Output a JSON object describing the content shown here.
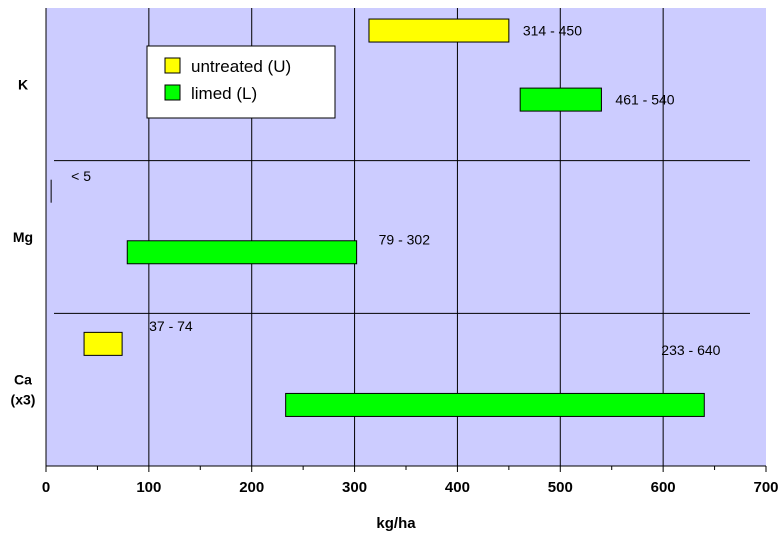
{
  "chart_data": {
    "type": "bar",
    "orientation": "horizontal",
    "xlabel": "kg/ha",
    "xlim": [
      0,
      700
    ],
    "xticks": [
      0,
      100,
      200,
      300,
      400,
      500,
      600,
      700
    ],
    "grid": true,
    "legend_position": "top-left",
    "categories": [
      {
        "label": "K",
        "label_lines": [
          "K"
        ]
      },
      {
        "label": "Mg",
        "label_lines": [
          "Mg"
        ]
      },
      {
        "label": "Ca (x3)",
        "label_lines": [
          "Ca",
          "(x3)"
        ]
      }
    ],
    "series": [
      {
        "name": "untreated (U)",
        "color": "#ffff00",
        "ranges": [
          {
            "category": "K",
            "low": 314,
            "high": 450,
            "label": "314 - 450"
          },
          {
            "category": "Mg",
            "low": 5,
            "high": 5,
            "label": "< 5"
          },
          {
            "category": "Ca (x3)",
            "low": 37,
            "high": 74,
            "label": "37 - 74"
          }
        ]
      },
      {
        "name": "limed (L)",
        "color": "#00ff00",
        "ranges": [
          {
            "category": "K",
            "low": 461,
            "high": 540,
            "label": "461 - 540"
          },
          {
            "category": "Mg",
            "low": 79,
            "high": 302,
            "label": "79 - 302"
          },
          {
            "category": "Ca (x3)",
            "low": 233,
            "high": 640,
            "label": "233 - 640"
          }
        ]
      }
    ],
    "plot_background": "#ccccff"
  }
}
